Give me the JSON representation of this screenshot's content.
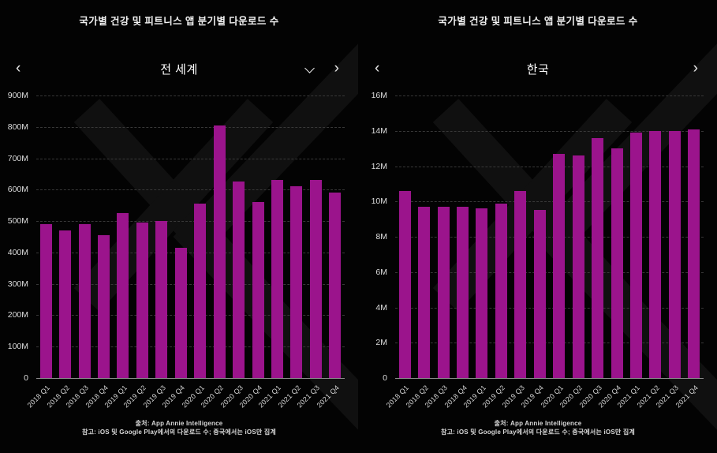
{
  "colors": {
    "bar": "#9b148c",
    "background": "#030303",
    "gridline": "#383838",
    "text": "#e6e6e6"
  },
  "nav": {
    "prev_icon": "‹",
    "next_icon": "›",
    "dropdown_icon": "chevron-down"
  },
  "chart_data": [
    {
      "type": "bar",
      "title": "국가별 건강 및 피트니스 앱 분기별 다운로드 수",
      "region": "전 세계",
      "categories": [
        "2018 Q1",
        "2018 Q2",
        "2018 Q3",
        "2018 Q4",
        "2019 Q1",
        "2019 Q2",
        "2019 Q3",
        "2019 Q4",
        "2020 Q1",
        "2020 Q2",
        "2020 Q3",
        "2020 Q4",
        "2021 Q1",
        "2021 Q2",
        "2021 Q3",
        "2021 Q4"
      ],
      "values": [
        490,
        470,
        490,
        455,
        525,
        495,
        500,
        415,
        555,
        805,
        625,
        560,
        630,
        610,
        630,
        590
      ],
      "unit": "M",
      "xlabel": "",
      "ylabel": "",
      "ylim": [
        0,
        900
      ],
      "ytick_step": 100,
      "ytick_suffix": "M",
      "grid": "horizontal-dashed",
      "legend": "none",
      "show_dropdown": true,
      "source": "출처: App Annie Intelligence",
      "note": "참고: iOS 및 Google Play에서의 다운로드 수; 중국에서는 iOS만 집계"
    },
    {
      "type": "bar",
      "title": "국가별 건강 및 피트니스 앱 분기별 다운로드 수",
      "region": "한국",
      "categories": [
        "2018 Q1",
        "2018 Q2",
        "2018 Q3",
        "2018 Q4",
        "2019 Q1",
        "2019 Q2",
        "2019 Q3",
        "2019 Q4",
        "2020 Q1",
        "2020 Q2",
        "2020 Q3",
        "2020 Q4",
        "2021 Q1",
        "2021 Q2",
        "2021 Q3",
        "2021 Q4"
      ],
      "values": [
        10.6,
        9.7,
        9.7,
        9.7,
        9.6,
        9.9,
        10.6,
        9.5,
        12.7,
        12.6,
        13.6,
        13.0,
        13.9,
        14.0,
        14.0,
        14.1
      ],
      "unit": "M",
      "xlabel": "",
      "ylabel": "",
      "ylim": [
        0,
        16
      ],
      "ytick_step": 2,
      "ytick_suffix": "M",
      "grid": "horizontal-dashed",
      "legend": "none",
      "show_dropdown": false,
      "source": "출처: App Annie Intelligence",
      "note": "참고: iOS 및 Google Play에서의 다운로드 수; 중국에서는 iOS만 집계"
    }
  ]
}
